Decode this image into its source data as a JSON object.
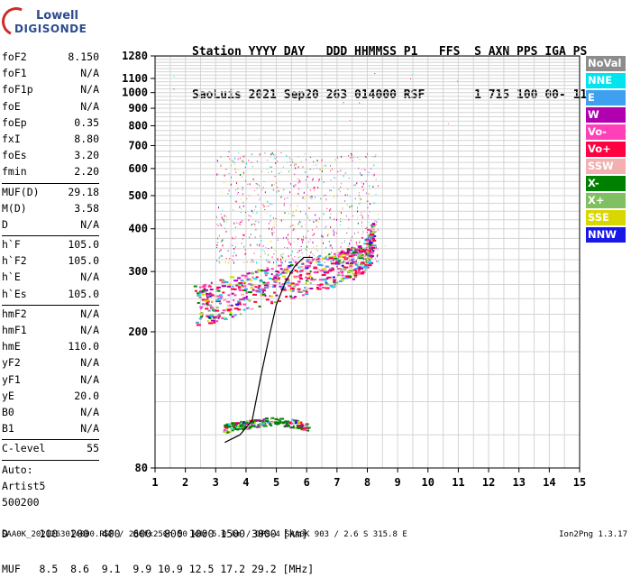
{
  "logo": {
    "line1": "Lowell",
    "line2": "DIGISONDE"
  },
  "header": {
    "line1": "Station YYYY DAY   DDD HHMMSS P1   FFS  S AXN PPS IGA PS",
    "line2": "SaoLuis 2021 Sep20 263 014000 RSF       1 715 100 00- 11"
  },
  "params": {
    "group1": [
      {
        "label": "foF2",
        "value": "8.150"
      },
      {
        "label": "foF1",
        "value": "N/A"
      },
      {
        "label": "foF1p",
        "value": "N/A"
      },
      {
        "label": "foE",
        "value": "N/A"
      },
      {
        "label": "foEp",
        "value": "0.35"
      },
      {
        "label": "fxI",
        "value": "8.80"
      },
      {
        "label": "foEs",
        "value": "3.20"
      },
      {
        "label": "fmin",
        "value": "2.20"
      }
    ],
    "group2": [
      {
        "label": "MUF(D)",
        "value": "29.18"
      },
      {
        "label": "M(D)",
        "value": "3.58"
      },
      {
        "label": "D",
        "value": "N/A"
      }
    ],
    "group3": [
      {
        "label": "h`F",
        "value": "105.0"
      },
      {
        "label": "h`F2",
        "value": "105.0"
      },
      {
        "label": "h`E",
        "value": "N/A"
      },
      {
        "label": "h`Es",
        "value": "105.0"
      }
    ],
    "group4": [
      {
        "label": "hmF2",
        "value": "N/A"
      },
      {
        "label": "hmF1",
        "value": "N/A"
      },
      {
        "label": "hmE",
        "value": "110.0"
      },
      {
        "label": "yF2",
        "value": "N/A"
      },
      {
        "label": "yF1",
        "value": "N/A"
      },
      {
        "label": "yE",
        "value": "20.0"
      },
      {
        "label": "B0",
        "value": "N/A"
      },
      {
        "label": "B1",
        "value": "N/A"
      }
    ],
    "group5": [
      {
        "label": "C-level",
        "value": "55"
      }
    ],
    "auto": {
      "line1": "Auto:",
      "line2": "Artist5",
      "line3": "500200"
    }
  },
  "legend": [
    {
      "label": "NoVal",
      "color": "#8c8c8c"
    },
    {
      "label": "NNE",
      "color": "#00e4f0"
    },
    {
      "label": "E",
      "color": "#3fa0f0"
    },
    {
      "label": "W",
      "color": "#b000b0"
    },
    {
      "label": "Vo-",
      "color": "#ff40b8"
    },
    {
      "label": "Vo+",
      "color": "#ff0040"
    },
    {
      "label": "SSW",
      "color": "#f4b0b0"
    },
    {
      "label": "X-",
      "color": "#008000"
    },
    {
      "label": "X+",
      "color": "#80c060"
    },
    {
      "label": "SSE",
      "color": "#d8d800"
    },
    {
      "label": "NNW",
      "color": "#1818e8"
    }
  ],
  "dmuf": {
    "line1": "D     100  200  400  600  800 1000 1500 3000 [km]",
    "line2": "MUF   8.5  8.6  9.1  9.9 10.9 12.5 17.2 29.2 [MHz]"
  },
  "footer": {
    "left": "SAA0K_2021263014000.RSF / 280fx256h 50 kHz 5.0 km / DPS-4 SAA0K 903 / 2.6 S 315.8 E",
    "right": "Ion2Png 1.3.17"
  },
  "chart_data": {
    "type": "scatter",
    "x_range": [
      1,
      15
    ],
    "y_range": [
      80,
      1280
    ],
    "x_ticks": [
      1,
      2,
      3,
      4,
      5,
      6,
      7,
      8,
      9,
      10,
      11,
      12,
      13,
      14,
      15
    ],
    "y_ticks": [
      80,
      200,
      300,
      400,
      500,
      600,
      700,
      800,
      900,
      1000,
      1100,
      1280
    ],
    "y_scale": "log",
    "grid": true,
    "legend_position": "right",
    "traces": [
      {
        "name": "F-layer trace",
        "color": "#ff0040",
        "points": [
          [
            2.3,
            215
          ],
          [
            3,
            225
          ],
          [
            4,
            240
          ],
          [
            5,
            255
          ],
          [
            6,
            270
          ],
          [
            7,
            285
          ],
          [
            7.6,
            300
          ],
          [
            8,
            320
          ],
          [
            8.15,
            360
          ]
        ]
      },
      {
        "name": "Es trace",
        "color": "#008000",
        "points": [
          [
            3.2,
            102
          ],
          [
            3.6,
            105
          ],
          [
            4,
            105
          ],
          [
            4.4,
            107
          ],
          [
            5,
            108
          ],
          [
            5.6,
            106
          ],
          [
            6,
            104
          ]
        ]
      }
    ],
    "profile_line": {
      "color": "#000000",
      "points": [
        [
          3.3,
          95
        ],
        [
          3.8,
          100
        ],
        [
          4.2,
          110
        ],
        [
          4.5,
          150
        ],
        [
          4.8,
          200
        ],
        [
          5,
          240
        ],
        [
          5.3,
          280
        ],
        [
          5.6,
          310
        ],
        [
          5.9,
          330
        ],
        [
          6.2,
          330
        ]
      ]
    }
  }
}
